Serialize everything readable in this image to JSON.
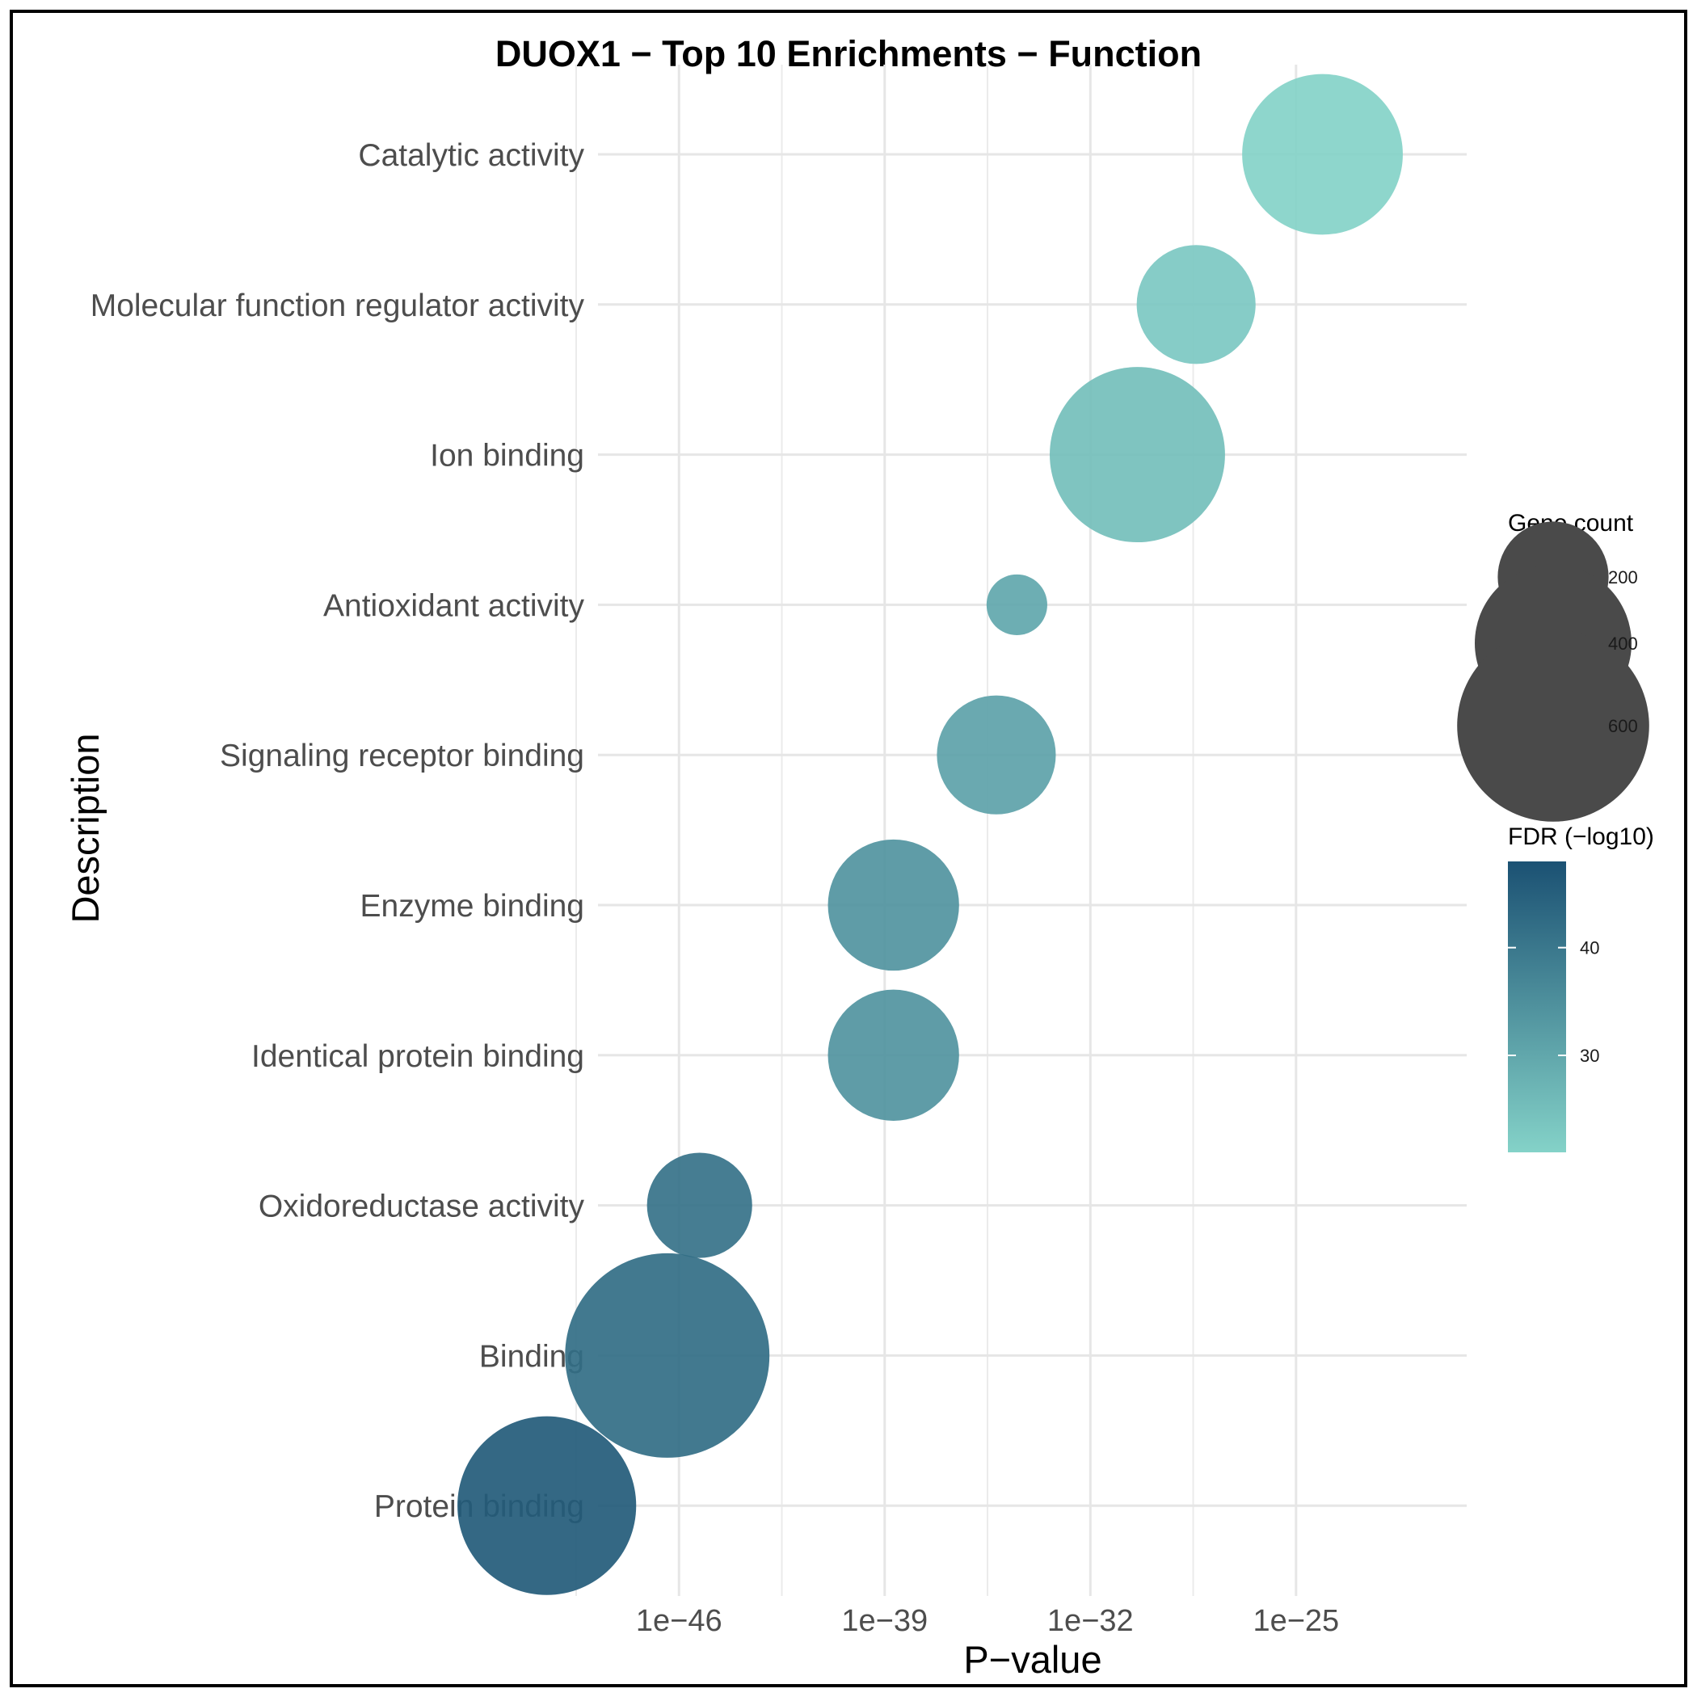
{
  "chart_data": {
    "type": "scatter",
    "title": "DUOX1 − Top 10 Enrichments − Function",
    "xlabel": "P−value",
    "ylabel": "Description",
    "x_scale": "log10",
    "x_ticks": [
      "1e−46",
      "1e−39",
      "1e−32",
      "1e−25"
    ],
    "x_tick_exponents": [
      -46,
      -39,
      -32,
      -25
    ],
    "x_range_exponent": [
      -50,
      -22.5
    ],
    "categories": [
      "Catalytic activity",
      "Molecular function regulator activity",
      "Ion binding",
      "Antioxidant activity",
      "Signaling receptor binding",
      "Enzyme binding",
      "Identical protein binding",
      "Oxidoreductase activity",
      "Binding",
      "Protein binding"
    ],
    "points": [
      {
        "label": "Catalytic activity",
        "p_exponent": -24.1,
        "gene_count": 420,
        "fdr_log10": 21
      },
      {
        "label": "Molecular function regulator activity",
        "p_exponent": -28.4,
        "gene_count": 230,
        "fdr_log10": 23
      },
      {
        "label": "Ion binding",
        "p_exponent": -30.4,
        "gene_count": 500,
        "fdr_log10": 25
      },
      {
        "label": "Antioxidant activity",
        "p_exponent": -34.5,
        "gene_count": 60,
        "fdr_log10": 30
      },
      {
        "label": "Signaling receptor binding",
        "p_exponent": -35.2,
        "gene_count": 230,
        "fdr_log10": 31
      },
      {
        "label": "Enzyme binding",
        "p_exponent": -38.7,
        "gene_count": 280,
        "fdr_log10": 34
      },
      {
        "label": "Identical protein binding",
        "p_exponent": -38.7,
        "gene_count": 280,
        "fdr_log10": 34
      },
      {
        "label": "Oxidoreductase activity",
        "p_exponent": -45.3,
        "gene_count": 180,
        "fdr_log10": 41
      },
      {
        "label": "Binding",
        "p_exponent": -46.4,
        "gene_count": 680,
        "fdr_log10": 42
      },
      {
        "label": "Protein binding",
        "p_exponent": -50.5,
        "gene_count": 520,
        "fdr_log10": 46
      }
    ],
    "legend_size": {
      "title": "Gene count",
      "values": [
        200,
        400,
        600
      ],
      "labels": [
        "200",
        "400",
        "600"
      ]
    },
    "legend_color": {
      "title": "FDR (−log10)",
      "range": [
        21,
        48
      ],
      "ticks": [
        30,
        40
      ],
      "tick_labels": [
        "30",
        "40"
      ],
      "low_color": "#84d2c8",
      "high_color": "#1b5173"
    },
    "grid": true,
    "legend_position": "right",
    "point_color_low": "#84d2c8",
    "point_color_high": "#1b5173",
    "border_color": "#000000"
  }
}
